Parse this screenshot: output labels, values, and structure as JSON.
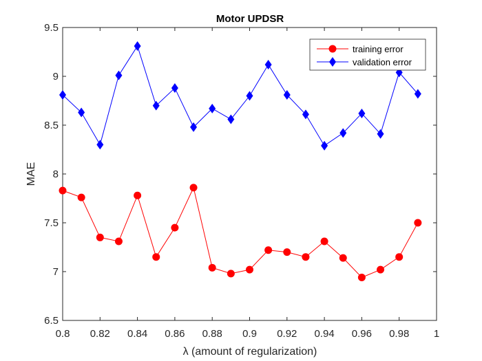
{
  "chart_data": {
    "type": "line",
    "title": "Motor UPDSR",
    "xlabel": "λ (amount of regularization)",
    "ylabel": "MAE",
    "xlim": [
      0.8,
      1.0
    ],
    "ylim": [
      6.5,
      9.5
    ],
    "xticks": [
      "0.8",
      "0.82",
      "0.84",
      "0.86",
      "0.88",
      "0.9",
      "0.92",
      "0.94",
      "0.96",
      "0.98",
      "1"
    ],
    "yticks": [
      "6.5",
      "7",
      "7.5",
      "8",
      "8.5",
      "9",
      "9.5"
    ],
    "grid": false,
    "legend_position": "top-right",
    "x": [
      0.8,
      0.81,
      0.82,
      0.83,
      0.84,
      0.85,
      0.86,
      0.87,
      0.88,
      0.89,
      0.9,
      0.91,
      0.92,
      0.93,
      0.94,
      0.95,
      0.96,
      0.97,
      0.98,
      0.99
    ],
    "series": [
      {
        "name": "training error",
        "color": "#ff0000",
        "marker": "circle",
        "values": [
          7.83,
          7.76,
          7.35,
          7.31,
          7.78,
          7.15,
          7.45,
          7.86,
          7.04,
          6.98,
          7.02,
          7.22,
          7.2,
          7.15,
          7.31,
          7.14,
          6.94,
          7.02,
          7.15,
          7.5
        ]
      },
      {
        "name": "validation error",
        "color": "#0000ff",
        "marker": "diamond",
        "values": [
          8.81,
          8.63,
          8.3,
          9.01,
          9.31,
          8.7,
          8.88,
          8.48,
          8.67,
          8.56,
          8.8,
          9.12,
          8.81,
          8.61,
          8.29,
          8.42,
          8.62,
          8.41,
          9.04,
          8.82
        ]
      }
    ]
  }
}
